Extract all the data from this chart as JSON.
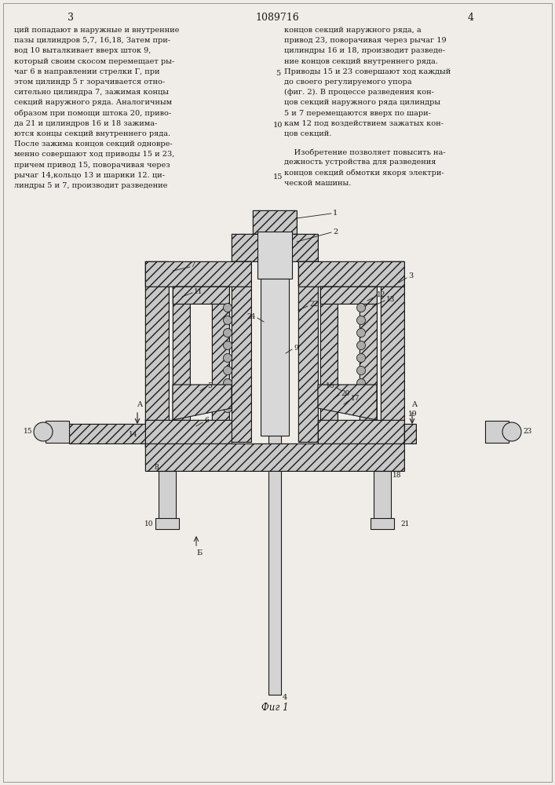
{
  "page_number_left": "3",
  "patent_number": "1089716",
  "page_number_right": "4",
  "background_color": "#f0ede8",
  "text_color": "#1a1a1a",
  "left_column_text": [
    "ций попадают в наружные и внутренние",
    "пазы цилиндров 5,7, 16,18, Затем при-",
    "вод 10 выталкивает вверх шток 9,",
    "который своим скосом перемещает ры-",
    "чаг 6 в направлении стрелки Г, при",
    "этом цилиндр 5 г зорачивается отно-",
    "сительно цилиндра 7, зажимая концы",
    "секций наружного ряда. Аналогичным",
    "образом при помощи штока 20, приво-",
    "да 21 и цилиндров 16 и 18 зажима-",
    "ются концы секций внутреннего ряда.",
    "После зажима концов секций одновре-",
    "менно совершают ход приводы 15 и 23,",
    "причем привод 15, поворачивая через",
    "рычаг 14,кольцо 13 и шарики 12. ци-",
    "линдры 5 и 7, производит разведение"
  ],
  "right_column_text": [
    "концов секций наружного ряда, а",
    "привод 23, поворачивая через рычаг 19",
    "цилиндры 16 и 18, производит разведе-",
    "ние концов секций внутреннего ряда.",
    "Приводы 15 и 23 совершают ход каждый",
    "до своего регулируемого упора",
    "(фиг. 2). В процессе разведения кон-",
    "цов секций наружного ряда цилиндры",
    "5 и 7 перемещаются вверх по шари-",
    "кам 12 под воздействием зажатых кон-",
    "цов секций."
  ],
  "invention_text": [
    "    Изобретение позволяет повысить на-",
    "дежность устройства для разведения",
    "концов секций обмотки якоря электри-",
    "ческой машины."
  ],
  "line_numbers": [
    5,
    10,
    15
  ],
  "figure_caption": "Фиг 1",
  "line_color": "#1a1a1a",
  "hatch_face_color": "#c8c8c8",
  "hatch_pattern": "///",
  "shaft_color": "#d8d8d8",
  "spring_color": "#aaaaaa"
}
